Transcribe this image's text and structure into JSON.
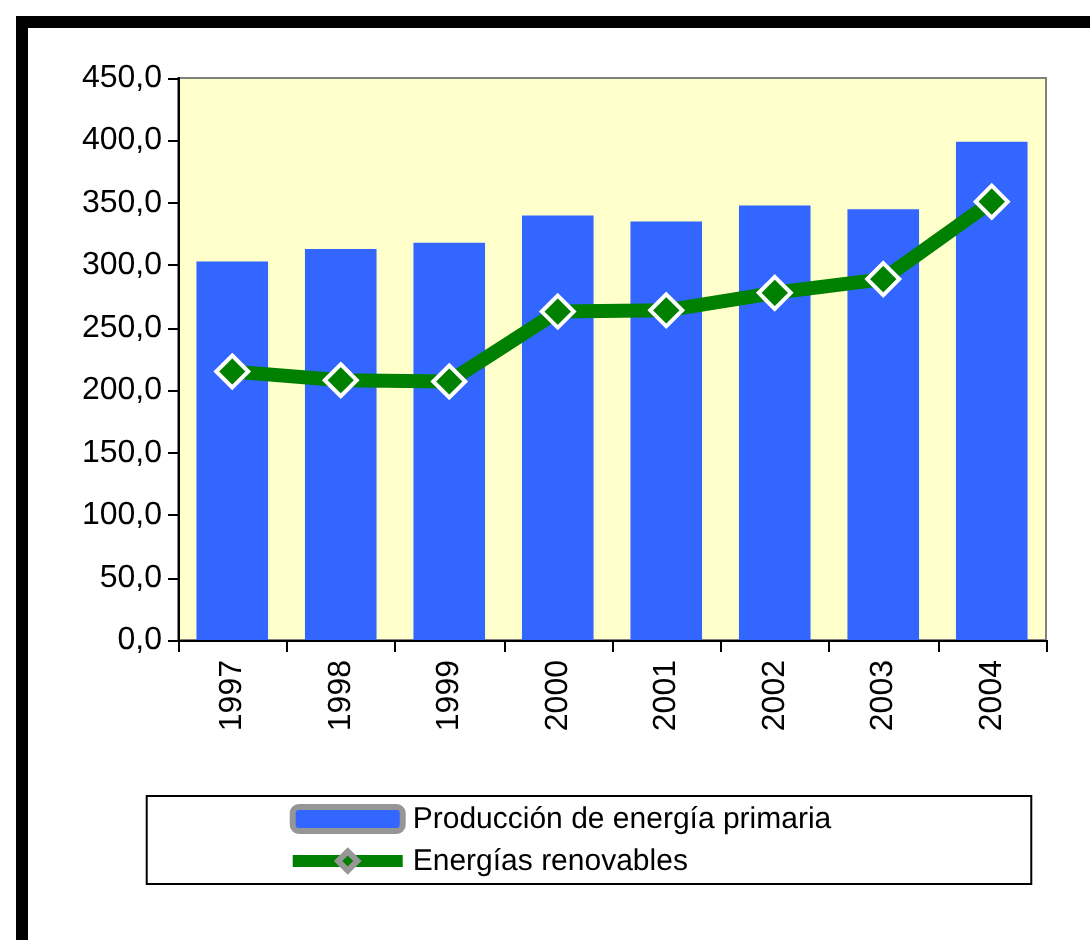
{
  "chart_data": {
    "type": "bar",
    "categories": [
      "1997",
      "1998",
      "1999",
      "2000",
      "2001",
      "2002",
      "2003",
      "2004"
    ],
    "series": [
      {
        "name": "Producción de energía primaria",
        "color": "#3366ff",
        "values": [
          303,
          313,
          318,
          340,
          335,
          348,
          345,
          399
        ]
      },
      {
        "name": "Energías renovables",
        "type": "line",
        "color": "#008000",
        "values": [
          215,
          208,
          207,
          263,
          264,
          278,
          289,
          351
        ]
      }
    ],
    "ylim": [
      0,
      450
    ],
    "yticks": [
      {
        "value": 0,
        "label": "0,0"
      },
      {
        "value": 50,
        "label": "50,0"
      },
      {
        "value": 100,
        "label": "100,0"
      },
      {
        "value": 150,
        "label": "150,0"
      },
      {
        "value": 200,
        "label": "200,0"
      },
      {
        "value": 250,
        "label": "250,0"
      },
      {
        "value": 300,
        "label": "300,0"
      },
      {
        "value": 350,
        "label": "350,0"
      },
      {
        "value": 400,
        "label": "400,0"
      },
      {
        "value": 450,
        "label": "450,0"
      }
    ],
    "grid": false,
    "legend": "bottom",
    "marker": "diamond"
  }
}
